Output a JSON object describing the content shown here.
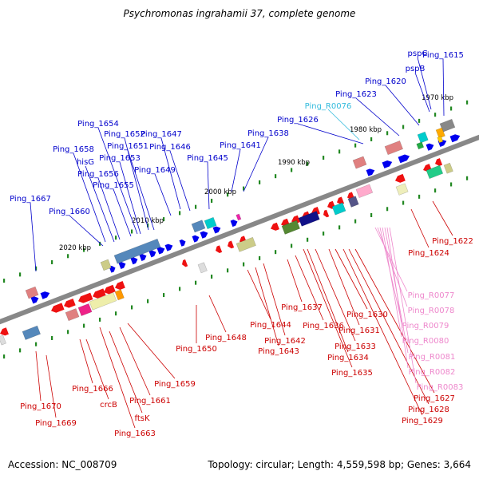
{
  "title": "Psychromonas ingrahamii 37, complete genome",
  "footer": {
    "accession": "Accession: NC_008709",
    "summary": "Topology: circular; Length: 4,559,598 bp; Genes: 3,664"
  },
  "colors": {
    "forward_label": "#0000cc",
    "reverse_label": "#cc0000",
    "rna_label": "#ee88cc",
    "trna_label": "#33bbdd",
    "backbone": "#888888",
    "tick": "#228822"
  },
  "scale_labels": [
    "1970 kbp",
    "1980 kbp",
    "1990 kbp",
    "2000 kbp",
    "2010 kbp",
    "2020 kbp"
  ],
  "forward_gene_labels": [
    "Ping_1615",
    "pspC",
    "pspB",
    "Ping_1620",
    "Ping_1623",
    "Ping_1626",
    "Ping_1638",
    "Ping_1641",
    "Ping_1645",
    "Ping_1646",
    "Ping_1647",
    "Ping_1649",
    "Ping_1651",
    "Ping_1652",
    "Ping_1653",
    "Ping_1654",
    "Ping_1655",
    "Ping_1656",
    "hisG",
    "Ping_1658",
    "Ping_1660",
    "Ping_1667"
  ],
  "rna_top_label": "Ping_R0076",
  "reverse_gene_labels": [
    "Ping_1622",
    "Ping_1624",
    "Ping_1627",
    "Ping_1628",
    "Ping_1629",
    "Ping_1630",
    "Ping_1631",
    "Ping_1633",
    "Ping_1634",
    "Ping_1635",
    "Ping_1636",
    "Ping_1637",
    "Ping_1642",
    "Ping_1643",
    "Ping_1644",
    "Ping_1648",
    "Ping_1650",
    "Ping_1659",
    "Ping_1661",
    "ftsK",
    "Ping_1663",
    "crcB",
    "Ping_1666",
    "Ping_1669",
    "Ping_1670"
  ],
  "rna_bottom_labels": [
    "Ping_R0077",
    "Ping_R0078",
    "Ping_R0079",
    "Ping_R0080",
    "Ping_R0081",
    "Ping_R0082",
    "Ping_R0083"
  ]
}
